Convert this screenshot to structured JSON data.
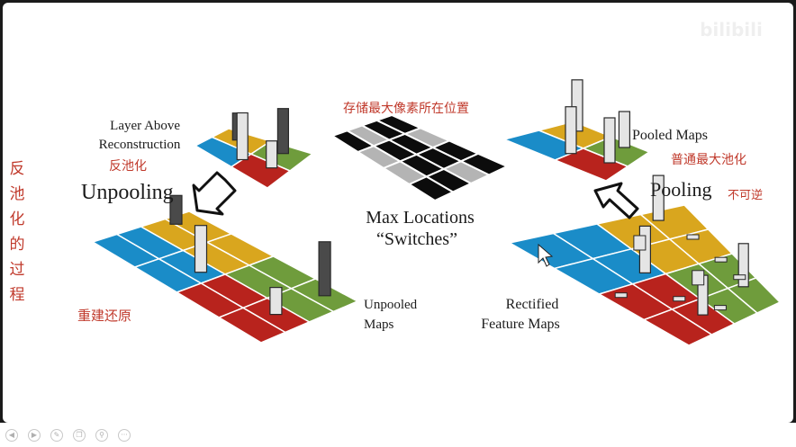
{
  "slide": {
    "left": {
      "label_layer_above": [
        "Layer Above",
        "Reconstruction"
      ],
      "label_unpooling": "Unpooling",
      "label_unpooled_maps": [
        "Unpooled",
        "Maps"
      ]
    },
    "center": {
      "label_max_locations": [
        "Max Locations",
        "“Switches”"
      ]
    },
    "right": {
      "label_pooled_maps": "Pooled Maps",
      "label_pooling": "Pooling",
      "label_rectified": [
        "Rectified",
        "Feature Maps"
      ]
    }
  },
  "annotations": {
    "fan_chi_hua": "反池化",
    "vertical_note": [
      "反",
      "池",
      "化",
      "的",
      "过",
      "程"
    ],
    "rebuild_restore": "重建还原",
    "store_positions": "存储最大像素所在位置",
    "normal_max_pooling": "普通最大池化",
    "irreversible": "不可逆"
  },
  "watermark": "bilibili",
  "colors": {
    "yellow": "#d9a61e",
    "green": "#6f9c3c",
    "red": "#b8231d",
    "blue": "#1a8cc8",
    "black": "#0c0c0c",
    "gray": "#b4b4b4",
    "bar_dark": "#4a4a4a",
    "bar_light": "#e5e5e5",
    "annotation": "#c0392b"
  },
  "toolbar": {
    "icons": [
      "previous-icon",
      "next-icon",
      "pen-icon",
      "copy-icon",
      "search-icon",
      "more-icon"
    ]
  }
}
